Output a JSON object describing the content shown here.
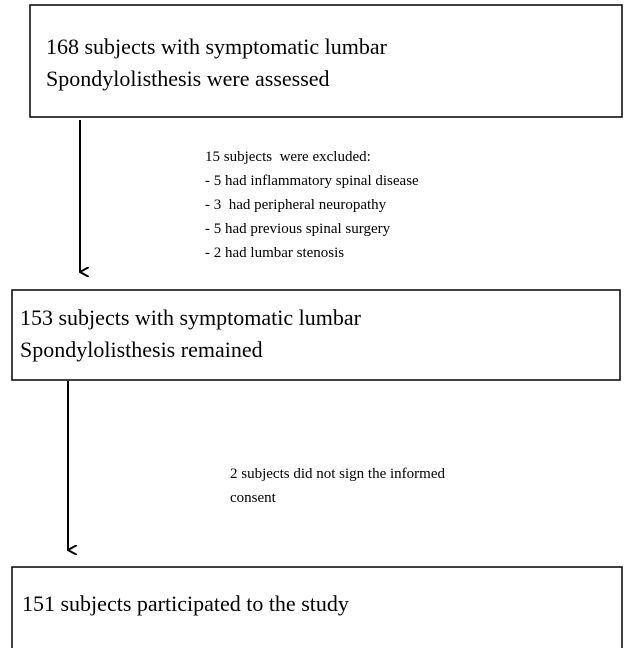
{
  "nodes": [
    {
      "lines": [
        "168 subjects with symptomatic lumbar",
        "Spondylolisthesis were assessed"
      ]
    },
    {
      "lines": [
        "153 subjects with symptomatic lumbar",
        "Spondylolisthesis remained"
      ]
    },
    {
      "lines": [
        "151 subjects participated to the study"
      ]
    }
  ],
  "notes": [
    {
      "lines": [
        "15 subjects  were excluded:",
        "- 5 had inflammatory spinal disease",
        "- 3  had peripheral neuropathy",
        "- 5 had previous spinal surgery",
        "- 2 had lumbar stenosis"
      ]
    },
    {
      "lines": [
        "2 subjects did not sign the informed",
        "consent"
      ]
    }
  ]
}
